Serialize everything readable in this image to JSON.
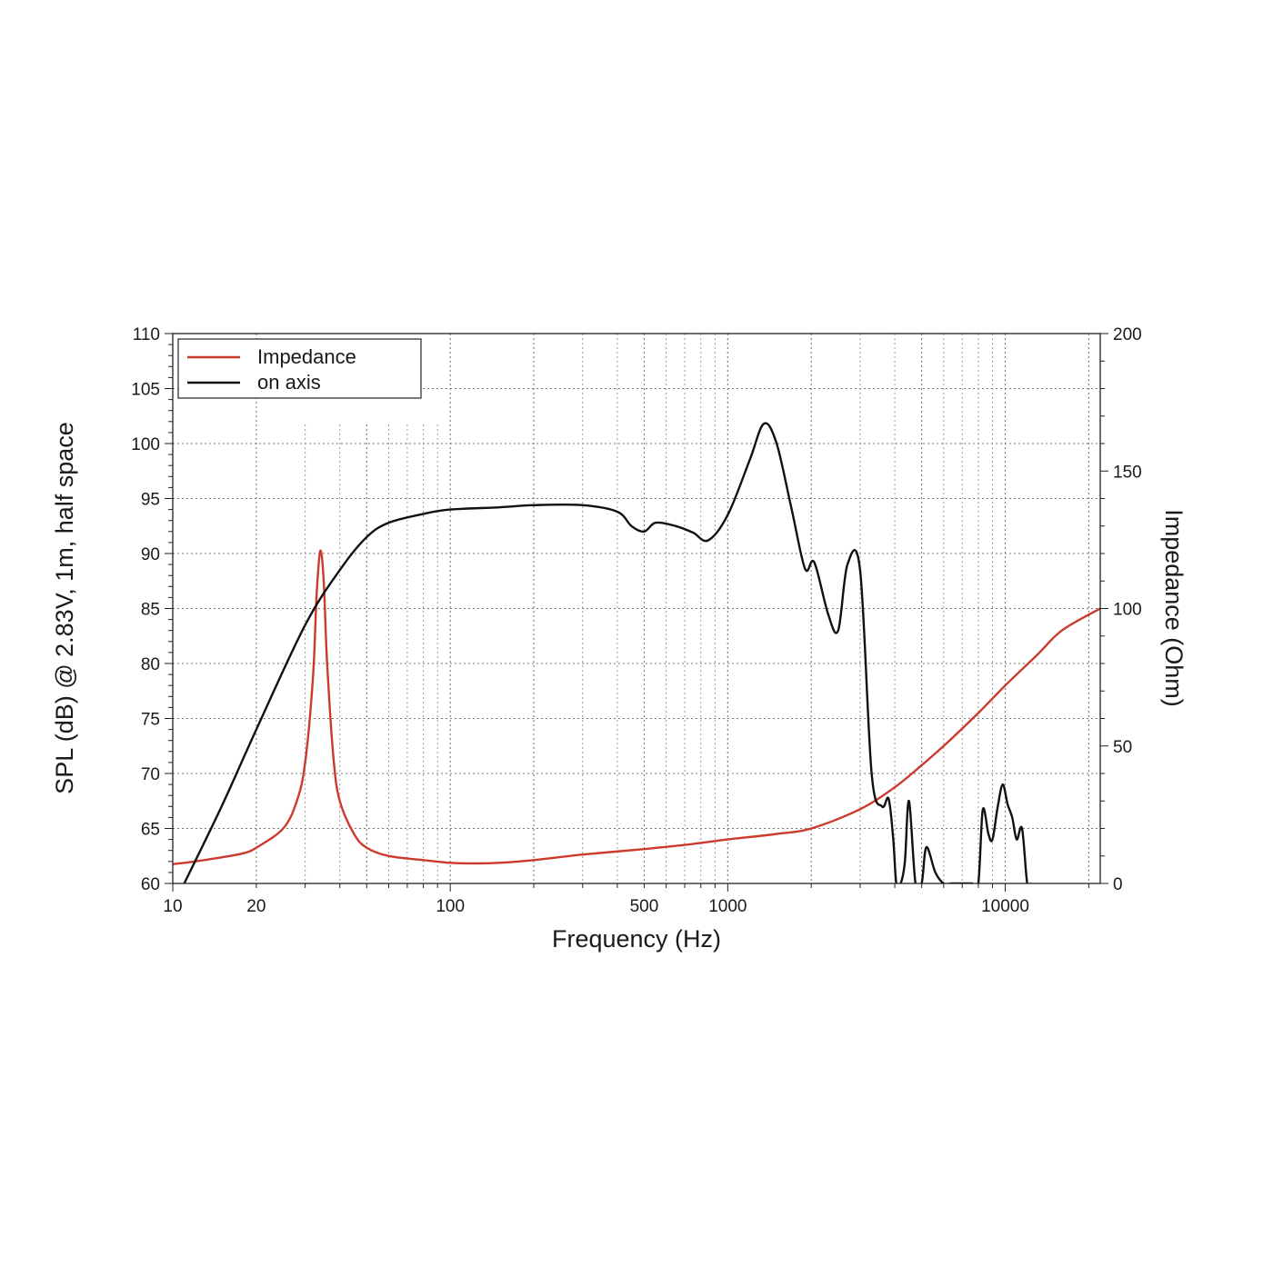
{
  "chart_data": {
    "type": "line",
    "title": "",
    "xlabel": "Frequency (Hz)",
    "ylabel_left": "SPL (dB) @ 2.83V, 1m, half space",
    "ylabel_right": "Impedance (Ohm)",
    "x_scale": "log",
    "xlim": [
      10,
      22000
    ],
    "ylim_left": [
      60,
      110
    ],
    "ylim_right": [
      0,
      200
    ],
    "x_tick_labels": [
      "10",
      "20",
      "100",
      "500",
      "1000",
      "10000"
    ],
    "x_ticks": [
      10,
      20,
      100,
      500,
      1000,
      10000
    ],
    "y_left_ticks": [
      60,
      65,
      70,
      75,
      80,
      85,
      90,
      95,
      100,
      105,
      110
    ],
    "y_right_ticks": [
      0,
      50,
      100,
      150,
      200
    ],
    "grid": true,
    "legend_position": "top-left",
    "colors": {
      "impedance": "#cc3a2e",
      "on_axis": "#111111"
    },
    "series": [
      {
        "name": "Impedance",
        "axis": "right",
        "color": "#cc3a2e",
        "x": [
          10,
          12,
          15,
          18,
          20,
          25,
          28,
          30,
          32,
          33,
          34,
          35,
          36,
          38,
          40,
          45,
          50,
          60,
          80,
          100,
          120,
          150,
          200,
          300,
          500,
          700,
          1000,
          1500,
          2000,
          3000,
          4000,
          5000,
          6000,
          8000,
          10000,
          13000,
          16000,
          22000
        ],
        "values": [
          7,
          8,
          9.5,
          11,
          13,
          20,
          30,
          44,
          75,
          105,
          121,
          110,
          80,
          45,
          30,
          18,
          13,
          10,
          8.5,
          7.5,
          7.3,
          7.5,
          8.5,
          10.5,
          12.5,
          14,
          16,
          18,
          20,
          27,
          35,
          43,
          50,
          62,
          72,
          83,
          92,
          100
        ]
      },
      {
        "name": "on axis",
        "axis": "left",
        "color": "#111111",
        "x": [
          11,
          15,
          20,
          30,
          40,
          50,
          60,
          80,
          100,
          150,
          200,
          300,
          400,
          450,
          500,
          550,
          650,
          750,
          850,
          1000,
          1200,
          1350,
          1500,
          1700,
          1900,
          2050,
          2300,
          2500,
          2700,
          3000,
          3300,
          3600,
          3800,
          3950,
          4050,
          4200,
          4350,
          4500,
          4750,
          5000,
          5200,
          5600,
          6000,
          6400,
          6800,
          7200,
          7600,
          8000,
          8300,
          8700,
          9000,
          9400,
          9800,
          10200,
          10600,
          11000,
          11500,
          12000,
          12400
        ],
        "values": [
          60,
          67,
          74,
          83.5,
          88.5,
          91.5,
          92.8,
          93.6,
          94,
          94.2,
          94.4,
          94.4,
          93.8,
          92.5,
          92,
          92.8,
          92.5,
          91.9,
          91.2,
          93.5,
          98.5,
          101.8,
          100,
          94,
          88.6,
          89.2,
          84.5,
          83,
          89,
          88.5,
          70,
          67,
          67.7,
          64,
          60,
          60,
          62,
          67.5,
          60,
          60,
          63.3,
          61,
          60,
          60,
          60,
          60,
          60,
          60,
          66.7,
          64.5,
          64,
          67,
          69,
          67.2,
          66,
          64,
          65,
          60,
          60
        ]
      }
    ]
  },
  "legend": {
    "items": [
      {
        "label": "Impedance",
        "color": "#cc3a2e"
      },
      {
        "label": "on axis",
        "color": "#111111"
      }
    ]
  }
}
